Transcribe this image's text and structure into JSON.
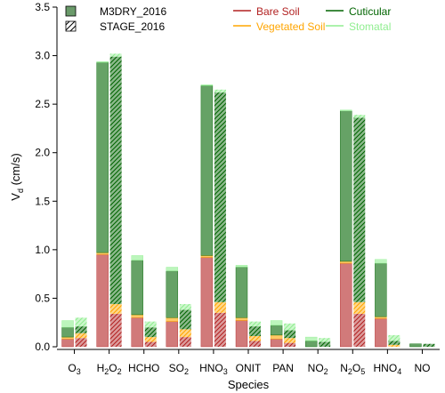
{
  "chart_data": {
    "type": "bar",
    "xlabel": "Species",
    "ylabel": {
      "main": "V",
      "sub": "d",
      "unit": " (cm/s)"
    },
    "ylim": [
      0,
      3.5
    ],
    "yticks": [
      "0.0",
      "0.5",
      "1.0",
      "1.5",
      "2.0",
      "2.5",
      "3.0",
      "3.5"
    ],
    "categories": [
      {
        "base": "O",
        "sub": "3",
        "after": ""
      },
      {
        "base": "H",
        "sub": "2",
        "after": "O",
        "sub2": "2"
      },
      {
        "base": "HCHO",
        "sub": "",
        "after": ""
      },
      {
        "base": "SO",
        "sub": "2",
        "after": ""
      },
      {
        "base": "HNO",
        "sub": "3",
        "after": ""
      },
      {
        "base": "ONIT",
        "sub": "",
        "after": ""
      },
      {
        "base": "PAN",
        "sub": "",
        "after": ""
      },
      {
        "base": "NO",
        "sub": "2",
        "after": ""
      },
      {
        "base": "N",
        "sub": "2",
        "after": "O",
        "sub2": "5"
      },
      {
        "base": "HNO",
        "sub": "4",
        "after": ""
      },
      {
        "base": "NO",
        "sub": "",
        "after": ""
      }
    ],
    "model_legend": [
      "M3DRY_2016",
      "STAGE_2016"
    ],
    "pathway_legend": [
      {
        "name": "Bare Soil",
        "color": "#b22222"
      },
      {
        "name": "Cuticular",
        "color": "#006400"
      },
      {
        "name": "Vegetated Soil",
        "color": "#ffa500"
      },
      {
        "name": "Stomatal",
        "color": "#90ee90"
      }
    ],
    "colors": {
      "bare_soil": "#b22222",
      "veg_soil": "#ffa500",
      "cuticular": "#006400",
      "stomatal": "#90ee90"
    },
    "series": [
      {
        "name": "M3DRY_2016",
        "bare_soil": [
          0.08,
          0.95,
          0.3,
          0.26,
          0.92,
          0.27,
          0.08,
          0.0,
          0.86,
          0.29,
          0.0
        ],
        "veg_soil": [
          0.02,
          0.02,
          0.03,
          0.04,
          0.02,
          0.03,
          0.04,
          0.0,
          0.02,
          0.02,
          0.0
        ],
        "cuticular": [
          0.1,
          1.96,
          0.56,
          0.48,
          1.75,
          0.52,
          0.1,
          0.06,
          1.55,
          0.55,
          0.03
        ],
        "stomatal": [
          0.07,
          0.01,
          0.05,
          0.04,
          0.01,
          0.02,
          0.05,
          0.04,
          0.01,
          0.04,
          0.0
        ]
      },
      {
        "name": "STAGE_2016",
        "bare_soil": [
          0.09,
          0.34,
          0.05,
          0.1,
          0.35,
          0.06,
          0.04,
          0.0,
          0.34,
          0.0,
          0.0
        ],
        "veg_soil": [
          0.05,
          0.1,
          0.05,
          0.08,
          0.11,
          0.05,
          0.05,
          0.0,
          0.12,
          0.02,
          0.0
        ],
        "cuticular": [
          0.07,
          2.55,
          0.1,
          0.2,
          2.16,
          0.1,
          0.08,
          0.05,
          1.9,
          0.04,
          0.03
        ],
        "stomatal": [
          0.09,
          0.03,
          0.06,
          0.06,
          0.03,
          0.05,
          0.07,
          0.04,
          0.03,
          0.06,
          0.0
        ]
      }
    ]
  }
}
